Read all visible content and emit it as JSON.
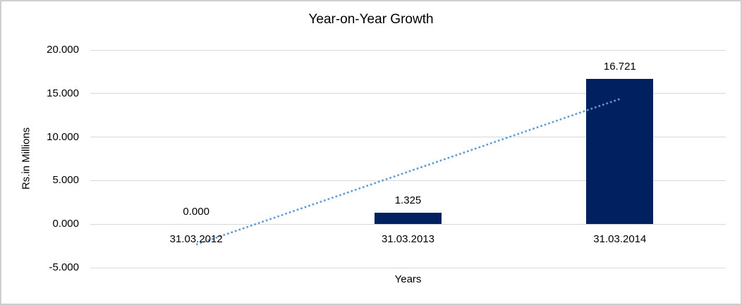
{
  "chart_data": {
    "type": "bar",
    "title": "Year-on-Year Growth",
    "xlabel": "Years",
    "ylabel": "Rs.in Millions",
    "categories": [
      "31.03.2012",
      "31.03.2013",
      "31.03.2014"
    ],
    "values": [
      0.0,
      1.325,
      16.721
    ],
    "data_labels": [
      "0.000",
      "1.325",
      "16.721"
    ],
    "ylim": [
      -5,
      20
    ],
    "yticks": {
      "values": [
        20,
        15,
        10,
        5,
        0,
        -5
      ],
      "labels": [
        "20.000",
        "15.000",
        "10.000",
        "5.000",
        "0.000",
        "-5.000"
      ]
    },
    "grid": "horizontal",
    "legend": "none",
    "trendline": {
      "type": "linear",
      "style": "dotted",
      "fitted_values": [
        -2.345,
        6.015,
        14.376
      ]
    },
    "colors": {
      "bar": "#002060",
      "trendline": "#5B9BD5",
      "gridline": "#D9D9D9",
      "text": "#000000",
      "border": "#D0CECE",
      "background": "#FFFFFF"
    }
  }
}
